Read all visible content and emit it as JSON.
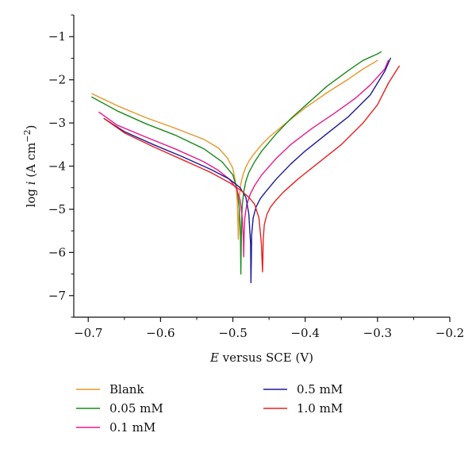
{
  "chart_data": {
    "type": "line",
    "title": "",
    "xlabel_italic": "E",
    "xlabel_rest": " versus SCE (V)",
    "ylabel_main": "log ",
    "ylabel_italic": "i",
    "ylabel_unit": " (A cm",
    "ylabel_sup": "−2",
    "ylabel_close": ")",
    "xlim": [
      -0.72,
      -0.2
    ],
    "ylim": [
      -7.5,
      -0.5
    ],
    "xticks": [
      -0.7,
      -0.6,
      -0.5,
      -0.4,
      -0.3,
      -0.2
    ],
    "xtick_labels": [
      "−0.7",
      "−0.6",
      "−0.5",
      "−0.4",
      "−0.3",
      "−0.2"
    ],
    "yticks": [
      -1,
      -2,
      -3,
      -4,
      -5,
      -6,
      -7
    ],
    "ytick_labels": [
      "−1",
      "−2",
      "−3",
      "−4",
      "−5",
      "−6",
      "−7"
    ],
    "grid": false,
    "legend_position": "bottom",
    "series": [
      {
        "name": "Blank",
        "color": "#e8962a",
        "x": [
          -0.695,
          -0.66,
          -0.62,
          -0.58,
          -0.54,
          -0.52,
          -0.508,
          -0.5,
          -0.496,
          -0.494,
          -0.493,
          -0.4925,
          -0.492,
          -0.4915,
          -0.491,
          -0.489,
          -0.486,
          -0.482,
          -0.477,
          -0.47,
          -0.46,
          -0.45,
          -0.43,
          -0.4,
          -0.37,
          -0.34,
          -0.32,
          -0.3
        ],
        "y": [
          -2.32,
          -2.6,
          -2.88,
          -3.12,
          -3.38,
          -3.58,
          -3.8,
          -4.05,
          -4.4,
          -4.8,
          -5.3,
          -5.7,
          -5.5,
          -5.1,
          -4.7,
          -4.4,
          -4.2,
          -4.02,
          -3.86,
          -3.7,
          -3.5,
          -3.33,
          -3.05,
          -2.65,
          -2.3,
          -1.98,
          -1.75,
          -1.55
        ]
      },
      {
        "name": "0.05 mM",
        "color": "#1a8a1a",
        "x": [
          -0.695,
          -0.66,
          -0.62,
          -0.58,
          -0.54,
          -0.515,
          -0.5,
          -0.494,
          -0.491,
          -0.4895,
          -0.489,
          -0.4885,
          -0.488,
          -0.487,
          -0.485,
          -0.482,
          -0.478,
          -0.47,
          -0.46,
          -0.44,
          -0.42,
          -0.4,
          -0.37,
          -0.34,
          -0.32,
          -0.3,
          -0.295
        ],
        "y": [
          -2.4,
          -2.72,
          -3.02,
          -3.28,
          -3.6,
          -3.9,
          -4.2,
          -4.55,
          -5.0,
          -5.6,
          -6.5,
          -5.9,
          -5.3,
          -4.9,
          -4.6,
          -4.35,
          -4.15,
          -3.9,
          -3.65,
          -3.25,
          -2.9,
          -2.6,
          -2.15,
          -1.78,
          -1.55,
          -1.4,
          -1.35
        ]
      },
      {
        "name": "0.1 mM",
        "color": "#e8198c",
        "x": [
          -0.685,
          -0.66,
          -0.62,
          -0.58,
          -0.54,
          -0.52,
          -0.505,
          -0.495,
          -0.49,
          -0.487,
          -0.4855,
          -0.485,
          -0.4845,
          -0.4835,
          -0.481,
          -0.476,
          -0.47,
          -0.46,
          -0.44,
          -0.42,
          -0.39,
          -0.36,
          -0.33,
          -0.31,
          -0.29,
          -0.285
        ],
        "y": [
          -2.75,
          -3.05,
          -3.33,
          -3.6,
          -3.9,
          -4.1,
          -4.3,
          -4.52,
          -4.78,
          -5.2,
          -5.7,
          -6.1,
          -5.6,
          -5.2,
          -4.9,
          -4.65,
          -4.45,
          -4.2,
          -3.82,
          -3.5,
          -3.12,
          -2.78,
          -2.42,
          -2.12,
          -1.75,
          -1.55
        ]
      },
      {
        "name": "0.5 mM",
        "color": "#1a1a9a",
        "x": [
          -0.678,
          -0.65,
          -0.61,
          -0.57,
          -0.53,
          -0.505,
          -0.49,
          -0.482,
          -0.478,
          -0.4755,
          -0.475,
          -0.4745,
          -0.474,
          -0.472,
          -0.468,
          -0.462,
          -0.455,
          -0.44,
          -0.42,
          -0.4,
          -0.37,
          -0.34,
          -0.31,
          -0.29,
          -0.282
        ],
        "y": [
          -2.9,
          -3.2,
          -3.5,
          -3.78,
          -4.08,
          -4.3,
          -4.5,
          -4.72,
          -5.1,
          -5.8,
          -6.7,
          -6.2,
          -5.6,
          -5.2,
          -4.95,
          -4.75,
          -4.6,
          -4.3,
          -3.95,
          -3.65,
          -3.25,
          -2.85,
          -2.35,
          -1.8,
          -1.5
        ]
      },
      {
        "name": "1.0 mM",
        "color": "#e82020",
        "x": [
          -0.678,
          -0.65,
          -0.61,
          -0.57,
          -0.53,
          -0.505,
          -0.49,
          -0.478,
          -0.47,
          -0.464,
          -0.4605,
          -0.459,
          -0.4585,
          -0.458,
          -0.4565,
          -0.453,
          -0.448,
          -0.44,
          -0.43,
          -0.41,
          -0.38,
          -0.35,
          -0.32,
          -0.3,
          -0.285,
          -0.27
        ],
        "y": [
          -2.9,
          -3.23,
          -3.55,
          -3.85,
          -4.15,
          -4.38,
          -4.55,
          -4.72,
          -4.88,
          -5.2,
          -5.8,
          -6.45,
          -6.1,
          -5.7,
          -5.35,
          -5.12,
          -4.95,
          -4.78,
          -4.6,
          -4.3,
          -3.9,
          -3.5,
          -3.0,
          -2.58,
          -2.08,
          -1.68
        ]
      }
    ]
  }
}
